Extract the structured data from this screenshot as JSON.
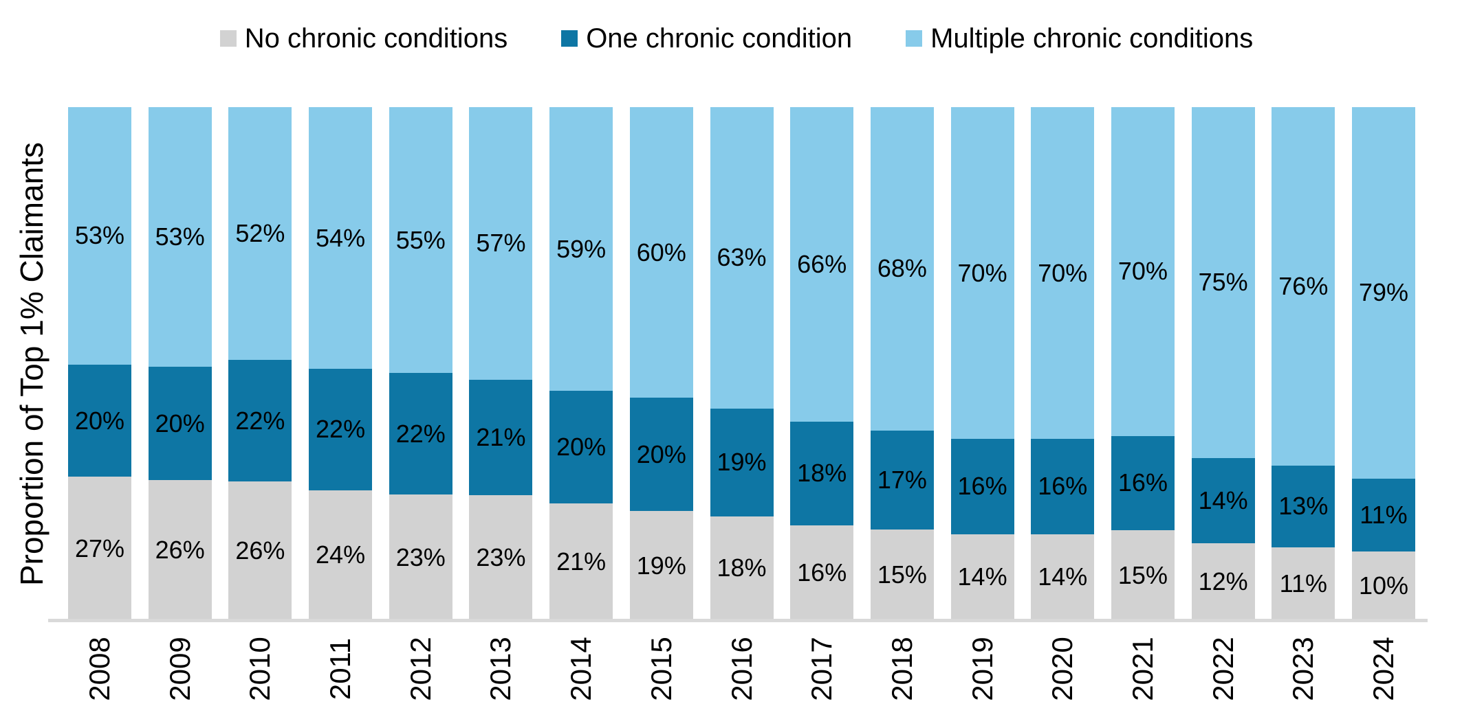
{
  "colors": {
    "background": "#FFFFFF",
    "axis_line": "#D9D9D9",
    "label_text": "#000000",
    "series_no_chronic": "#D2D2D2",
    "series_one_chronic": "#0E76A4",
    "series_multiple_chronic": "#87CBEA"
  },
  "chart_data": {
    "type": "bar",
    "variant": "100%-stacked-column",
    "title": "",
    "xlabel": "",
    "ylabel": "Proportion of Top 1% Claimants",
    "legend_position": "top",
    "label_format": "percent",
    "grid": false,
    "categories": [
      "2008",
      "2009",
      "2010",
      "2011",
      "2012",
      "2013",
      "2014",
      "2015",
      "2016",
      "2017",
      "2018",
      "2019",
      "2020",
      "2021",
      "2022",
      "2023",
      "2024"
    ],
    "series": [
      {
        "key": "no-chronic-conditions",
        "name": "No chronic conditions",
        "color": "#D2D2D2",
        "values": [
          27,
          26,
          26,
          24,
          23,
          23,
          21,
          19,
          18,
          16,
          15,
          14,
          14,
          15,
          12,
          11,
          10
        ]
      },
      {
        "key": "one-chronic-condition",
        "name": "One chronic condition",
        "color": "#0E76A4",
        "values": [
          20,
          20,
          22,
          22,
          22,
          21,
          20,
          20,
          19,
          18,
          17,
          16,
          16,
          16,
          14,
          13,
          11
        ]
      },
      {
        "key": "multiple-chronic-conditions",
        "name": "Multiple chronic conditions",
        "color": "#87CBEA",
        "values": [
          53,
          53,
          52,
          54,
          55,
          57,
          59,
          60,
          63,
          66,
          68,
          70,
          70,
          70,
          75,
          76,
          79
        ]
      }
    ]
  }
}
